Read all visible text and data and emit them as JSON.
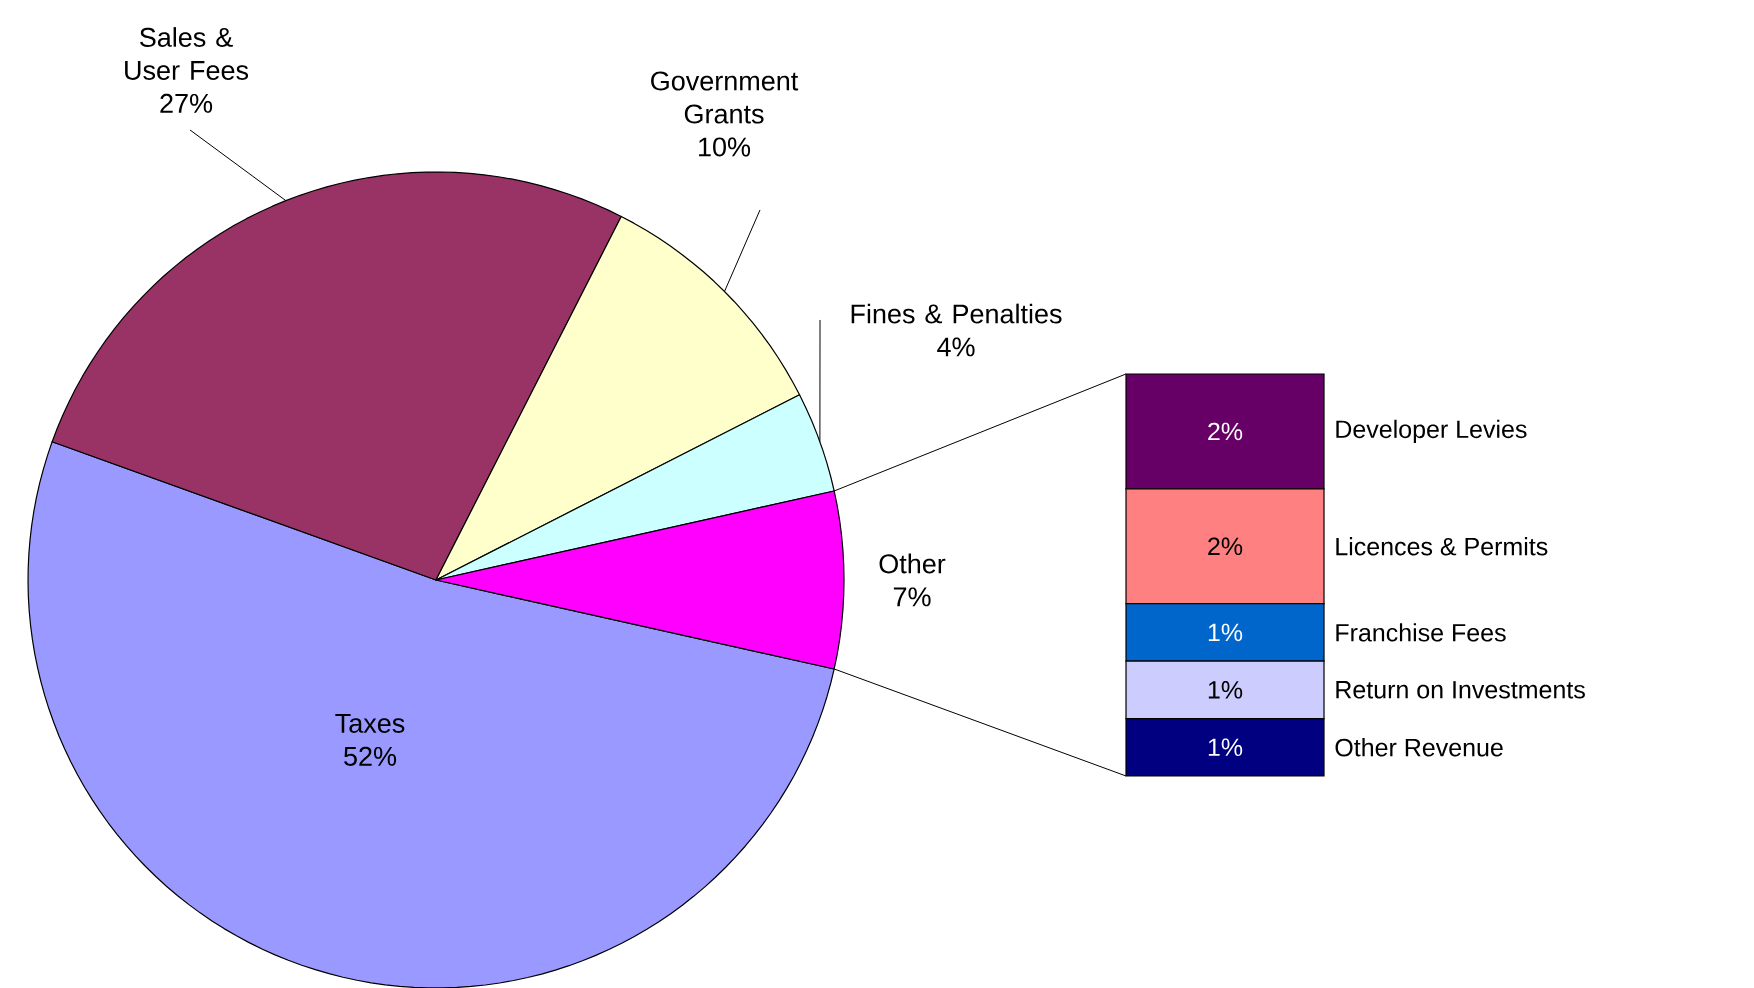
{
  "chart_data": [
    {
      "type": "pie",
      "categories": [
        "Taxes",
        "Sales & User Fees",
        "Government Grants",
        "Fines & Penalties",
        "Other"
      ],
      "values": [
        52,
        27,
        10,
        4,
        7
      ],
      "colors": [
        "#9999ff",
        "#993366",
        "#ffffcc",
        "#ccffff",
        "#ff00ff"
      ],
      "value_labels": [
        "52%",
        "27%",
        "10%",
        "4%",
        "7%"
      ]
    },
    {
      "type": "bar",
      "stacked": true,
      "legend": "right",
      "categories": [
        null
      ],
      "series": [
        {
          "name": "Other Revenue",
          "color": "#000080",
          "values": [
            1
          ],
          "value_labels": [
            "1%"
          ]
        },
        {
          "name": "Return on Investments",
          "color": "#ccccff",
          "values": [
            1
          ],
          "value_labels": [
            "1%"
          ]
        },
        {
          "name": "Franchise Fees",
          "color": "#0066cc",
          "values": [
            1
          ],
          "value_labels": [
            "1%"
          ]
        },
        {
          "name": "Licences & Permits",
          "color": "#ff8080",
          "values": [
            2
          ],
          "value_labels": [
            "2%"
          ]
        },
        {
          "name": "Developer Levies",
          "color": "#660066",
          "values": [
            2
          ],
          "value_labels": [
            "2%"
          ]
        }
      ]
    }
  ]
}
